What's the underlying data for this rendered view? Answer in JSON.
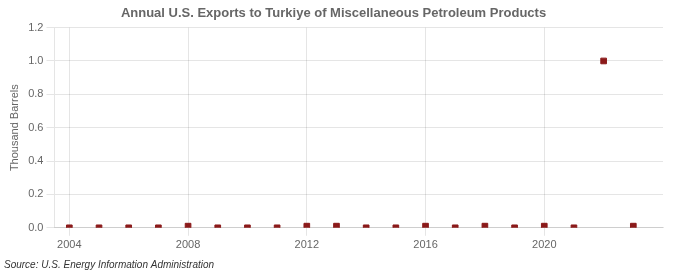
{
  "chart_data": {
    "type": "scatter",
    "title": "Annual U.S. Exports to Turkiye of Miscellaneous Petroleum Products",
    "ylabel": "Thousand Barrels",
    "annotations": [
      "Source: U.S. Energy Information Administration"
    ],
    "x": [
      2004,
      2005,
      2006,
      2007,
      2008,
      2009,
      2010,
      2011,
      2012,
      2013,
      2014,
      2015,
      2016,
      2017,
      2018,
      2019,
      2020,
      2021,
      2022,
      2023
    ],
    "values": [
      0.0,
      0.0,
      0.0,
      0.0,
      0.01,
      0.0,
      0.0,
      0.0,
      0.01,
      0.01,
      0.0,
      0.0,
      0.01,
      0.0,
      0.01,
      0.0,
      0.01,
      0.0,
      1.0,
      0.01
    ],
    "color": "#8b1a1a",
    "marker": "square",
    "xlim": [
      2003.5,
      2024.0
    ],
    "ylim": [
      0.0,
      1.2
    ],
    "xticks": [
      2004,
      2008,
      2012,
      2016,
      2020
    ],
    "yticks": [
      {
        "value": 0.0,
        "label": "0.0"
      },
      0.2,
      0.4,
      0.6,
      0.8,
      {
        "value": 1.0,
        "label": "1.0"
      },
      1.2
    ],
    "grid": true
  }
}
